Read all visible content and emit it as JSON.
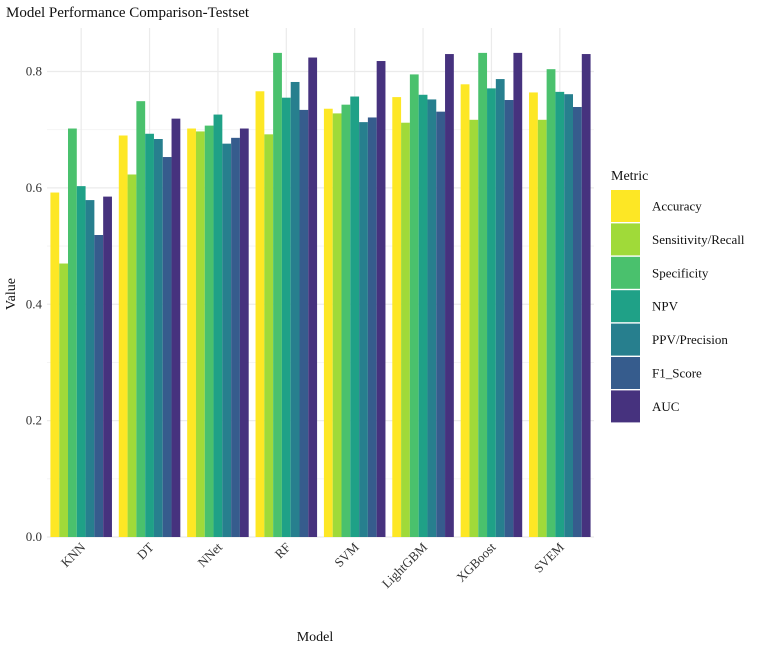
{
  "chart_data": {
    "type": "bar",
    "title": "Model Performance Comparison-Testset",
    "xlabel": "Model",
    "ylabel": "Value",
    "ylim": [
      0,
      0.86
    ],
    "yticks": [
      "0.0",
      "0.2",
      "0.4",
      "0.6",
      "0.8"
    ],
    "ytick_values": [
      0,
      0.2,
      0.4,
      0.6,
      0.8
    ],
    "grid": true,
    "categories": [
      "KNN",
      "DT",
      "NNet",
      "RF",
      "SVM",
      "LightGBM",
      "XGBoost",
      "SVEM"
    ],
    "legend": {
      "title": "Metric",
      "placement": "right"
    },
    "series": [
      {
        "name": "Accuracy",
        "color": "#FDE725",
        "values": [
          0.592,
          0.69,
          0.702,
          0.766,
          0.736,
          0.756,
          0.778,
          0.764
        ]
      },
      {
        "name": "Sensitivity/Recall",
        "color": "#A0DA39",
        "values": [
          0.47,
          0.623,
          0.697,
          0.692,
          0.728,
          0.712,
          0.717,
          0.717
        ]
      },
      {
        "name": "Specificity",
        "color": "#4AC16D",
        "values": [
          0.702,
          0.749,
          0.707,
          0.832,
          0.743,
          0.795,
          0.832,
          0.804
        ]
      },
      {
        "name": "NPV",
        "color": "#1FA187",
        "values": [
          0.603,
          0.693,
          0.726,
          0.755,
          0.757,
          0.76,
          0.771,
          0.765
        ]
      },
      {
        "name": "PPV/Precision",
        "color": "#277F8E",
        "values": [
          0.579,
          0.684,
          0.676,
          0.782,
          0.713,
          0.752,
          0.787,
          0.761
        ]
      },
      {
        "name": "F1_Score",
        "color": "#365C8D",
        "values": [
          0.519,
          0.653,
          0.686,
          0.734,
          0.721,
          0.731,
          0.751,
          0.739
        ]
      },
      {
        "name": "AUC",
        "color": "#46327E",
        "values": [
          0.585,
          0.719,
          0.702,
          0.824,
          0.818,
          0.83,
          0.832,
          0.83
        ]
      }
    ]
  }
}
